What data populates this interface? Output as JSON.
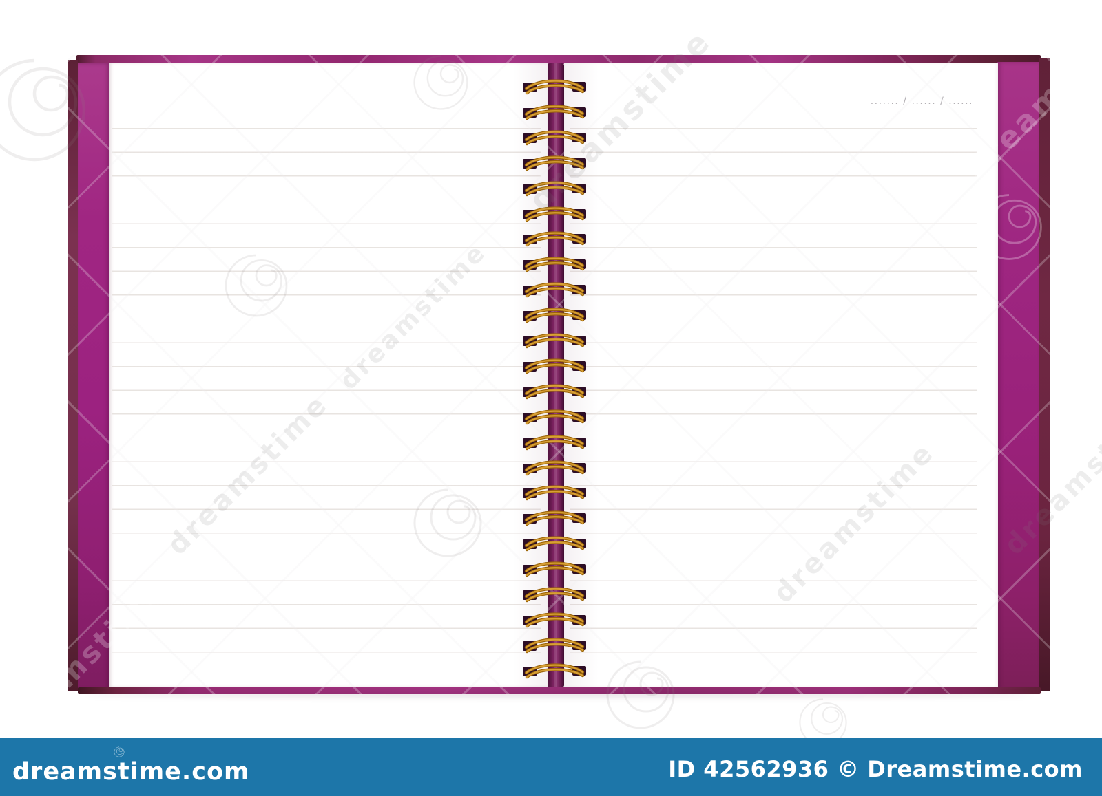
{
  "photo": {
    "subject": "Open blank spiral notebook with purple cover on white background",
    "date_field": "....... / ...... / ......"
  },
  "notebook": {
    "ring_count": 24,
    "colors": {
      "cover_magenta": "#9e2680",
      "cover_magenta_deep": "#7e1d60",
      "cover_edge_dark": "#6e2a42",
      "spine_purple": "#731d5a",
      "ring_gold": "#d89f35",
      "ring_gold_dark": "#9a6408",
      "hole_dark": "#2d0e26",
      "rule_line": "#e7e2df",
      "page_white": "#ffffff"
    }
  },
  "watermark": {
    "brand": "dreamstime",
    "bar_color": "#1d76a9",
    "logo_text": "dreamstime.com",
    "credit_text": "ID 42562936 © Dreamstime.com"
  }
}
